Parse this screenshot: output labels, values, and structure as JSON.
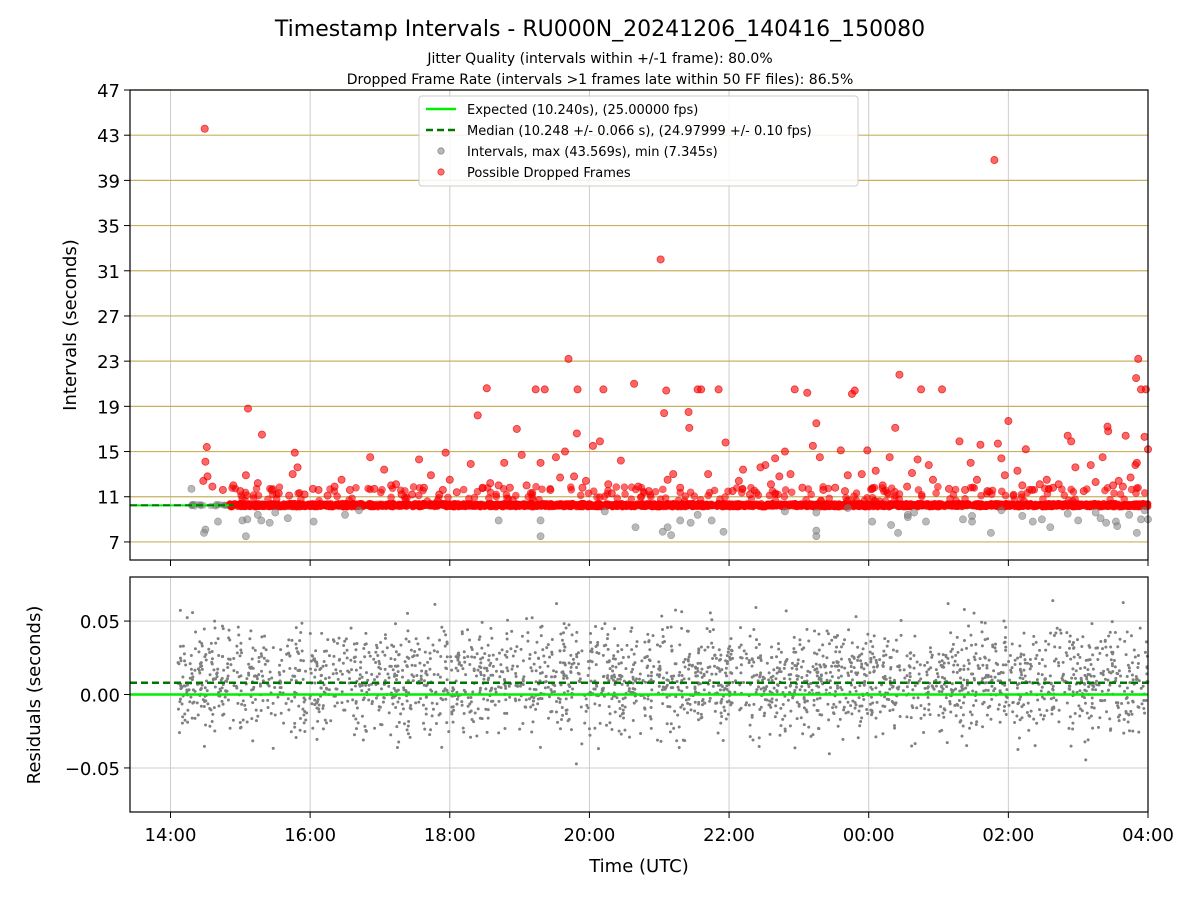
{
  "title": "Timestamp Intervals - RU000N_20241206_140416_150080",
  "subtitle_lines": [
    "Jitter Quality (intervals within +/-1 frame): 80.0%",
    "Dropped Frame Rate (intervals >1 frames late within 50 FF files): 86.5%"
  ],
  "colors": {
    "expected": "#00ee00",
    "median": "#007700",
    "interval": "#808080",
    "dropped": "#ff0000",
    "threshold_line": "#c8b060",
    "grid": "#cccccc"
  },
  "chart_data": [
    {
      "type": "scatter",
      "ylabel": "Intervals (seconds)",
      "x_ticks": [
        "14:00",
        "16:00",
        "18:00",
        "20:00",
        "22:00",
        "00:00",
        "02:00",
        "04:00"
      ],
      "x_tick_hours": [
        14,
        16,
        18,
        20,
        22,
        24,
        26,
        28
      ],
      "xlim_hours": [
        13.42,
        28.0
      ],
      "ylim": [
        5.4,
        47
      ],
      "y_ticks": [
        7,
        11,
        15,
        19,
        23,
        27,
        31,
        35,
        39,
        43,
        47
      ],
      "horizontal_lines": [
        7,
        11,
        15,
        19,
        23,
        27,
        31,
        35,
        39,
        43,
        47
      ],
      "grid": true,
      "legend_position": "top-center",
      "legend": [
        {
          "label": "Expected (10.240s), (25.00000 fps)",
          "style": "solid-line",
          "color": "#00ee00"
        },
        {
          "label": "Median (10.248 +/- 0.066 s), (24.97999 +/- 0.10 fps)",
          "style": "dashed-line",
          "color": "#007700"
        },
        {
          "label": "Intervals, max (43.569s), min (7.345s)",
          "style": "marker",
          "color": "#808080"
        },
        {
          "label": "Possible Dropped Frames",
          "style": "marker",
          "color": "#ff0000"
        }
      ],
      "expected_interval": 10.24,
      "median_interval": 10.248,
      "max_interval": 43.569,
      "min_interval": 7.345,
      "series": [
        {
          "name": "Possible Dropped Frames",
          "points": [
            [
              14.49,
              43.57
            ],
            [
              14.52,
              15.4
            ],
            [
              14.5,
              14.1
            ],
            [
              14.47,
              12.4
            ],
            [
              14.53,
              12.8
            ],
            [
              14.6,
              11.9
            ],
            [
              14.75,
              11.6
            ],
            [
              14.9,
              12.0
            ],
            [
              15.11,
              18.8
            ],
            [
              15.08,
              12.9
            ],
            [
              15.0,
              11.5
            ],
            [
              15.31,
              16.5
            ],
            [
              15.25,
              12.2
            ],
            [
              15.45,
              11.6
            ],
            [
              15.55,
              11.3
            ],
            [
              15.7,
              11.1
            ],
            [
              15.78,
              14.9
            ],
            [
              15.75,
              13.0
            ],
            [
              15.82,
              13.6
            ],
            [
              15.92,
              11.2
            ],
            [
              16.04,
              11.7
            ],
            [
              16.12,
              11.6
            ],
            [
              16.25,
              11.1
            ],
            [
              16.35,
              11.9
            ],
            [
              16.45,
              12.5
            ],
            [
              16.57,
              11.6
            ],
            [
              16.86,
              14.5
            ],
            [
              16.92,
              11.7
            ],
            [
              17.06,
              13.4
            ],
            [
              17.16,
              12.0
            ],
            [
              17.23,
              12.1
            ],
            [
              17.31,
              11.2
            ],
            [
              17.46,
              11.2
            ],
            [
              17.56,
              14.3
            ],
            [
              17.63,
              11.8
            ],
            [
              17.73,
              12.9
            ],
            [
              17.85,
              11.2
            ],
            [
              17.9,
              11.6
            ],
            [
              17.94,
              14.9
            ],
            [
              18.0,
              12.5
            ],
            [
              18.1,
              11.4
            ],
            [
              18.3,
              13.9
            ],
            [
              18.4,
              18.2
            ],
            [
              18.53,
              20.6
            ],
            [
              18.47,
              11.8
            ],
            [
              18.58,
              12.2
            ],
            [
              18.7,
              12.0
            ],
            [
              18.78,
              14.0
            ],
            [
              18.86,
              11.8
            ],
            [
              18.96,
              17.0
            ],
            [
              19.03,
              14.7
            ],
            [
              19.1,
              12.0
            ],
            [
              19.23,
              20.5
            ],
            [
              19.3,
              14.0
            ],
            [
              19.36,
              20.5
            ],
            [
              19.44,
              11.6
            ],
            [
              19.52,
              14.5
            ],
            [
              19.58,
              12.7
            ],
            [
              19.65,
              15.0
            ],
            [
              19.7,
              23.2
            ],
            [
              19.78,
              12.8
            ],
            [
              19.82,
              16.6
            ],
            [
              19.83,
              20.5
            ],
            [
              19.9,
              11.8
            ],
            [
              19.95,
              12.4
            ],
            [
              20.05,
              15.5
            ],
            [
              20.15,
              15.9
            ],
            [
              20.2,
              20.5
            ],
            [
              20.27,
              12.1
            ],
            [
              20.32,
              11.3
            ],
            [
              20.45,
              14.2
            ],
            [
              20.64,
              21.0
            ],
            [
              20.7,
              11.9
            ],
            [
              20.85,
              11.5
            ],
            [
              21.02,
              32.0
            ],
            [
              21.1,
              20.4
            ],
            [
              21.07,
              18.4
            ],
            [
              21.12,
              12.5
            ],
            [
              21.2,
              13.0
            ],
            [
              21.3,
              11.8
            ],
            [
              21.42,
              18.5
            ],
            [
              21.43,
              17.1
            ],
            [
              21.55,
              20.5
            ],
            [
              21.6,
              20.5
            ],
            [
              21.7,
              13.0
            ],
            [
              21.85,
              20.5
            ],
            [
              21.95,
              15.8
            ],
            [
              22.05,
              11.5
            ],
            [
              22.14,
              12.4
            ],
            [
              22.2,
              13.4
            ],
            [
              22.3,
              11.2
            ],
            [
              22.45,
              13.6
            ],
            [
              22.52,
              13.8
            ],
            [
              22.6,
              12.1
            ],
            [
              22.66,
              14.4
            ],
            [
              22.72,
              12.8
            ],
            [
              22.8,
              15.0
            ],
            [
              22.88,
              13.0
            ],
            [
              22.94,
              20.5
            ],
            [
              23.05,
              11.8
            ],
            [
              23.12,
              20.2
            ],
            [
              23.2,
              15.5
            ],
            [
              23.25,
              17.5
            ],
            [
              23.3,
              14.5
            ],
            [
              23.35,
              11.6
            ],
            [
              23.52,
              11.8
            ],
            [
              23.6,
              15.1
            ],
            [
              23.66,
              11.5
            ],
            [
              23.7,
              12.9
            ],
            [
              23.76,
              20.1
            ],
            [
              23.8,
              20.4
            ],
            [
              23.9,
              13.0
            ],
            [
              23.98,
              15.1
            ],
            [
              24.05,
              11.7
            ],
            [
              24.1,
              13.3
            ],
            [
              24.2,
              12.0
            ],
            [
              24.3,
              14.5
            ],
            [
              24.38,
              17.1
            ],
            [
              24.44,
              21.8
            ],
            [
              24.55,
              11.9
            ],
            [
              24.62,
              13.1
            ],
            [
              24.7,
              14.3
            ],
            [
              24.75,
              20.5
            ],
            [
              24.86,
              13.8
            ],
            [
              24.92,
              12.5
            ],
            [
              25.05,
              20.5
            ],
            [
              25.15,
              11.7
            ],
            [
              25.3,
              15.9
            ],
            [
              25.38,
              11.6
            ],
            [
              25.46,
              14.0
            ],
            [
              25.55,
              12.5
            ],
            [
              25.6,
              15.6
            ],
            [
              25.7,
              11.5
            ],
            [
              25.8,
              40.8
            ],
            [
              25.85,
              15.7
            ],
            [
              25.9,
              14.4
            ],
            [
              25.95,
              12.9
            ],
            [
              26.0,
              17.7
            ],
            [
              26.13,
              13.3
            ],
            [
              26.2,
              12.0
            ],
            [
              26.25,
              15.2
            ],
            [
              26.34,
              11.6
            ],
            [
              26.45,
              12.1
            ],
            [
              26.55,
              12.5
            ],
            [
              26.64,
              11.8
            ],
            [
              26.72,
              12.1
            ],
            [
              26.85,
              16.4
            ],
            [
              26.9,
              15.9
            ],
            [
              26.96,
              13.6
            ],
            [
              27.08,
              11.5
            ],
            [
              27.18,
              13.8
            ],
            [
              27.25,
              12.3
            ],
            [
              27.35,
              14.5
            ],
            [
              27.43,
              16.8
            ],
            [
              27.42,
              17.2
            ],
            [
              27.5,
              12.0
            ],
            [
              27.58,
              12.4
            ],
            [
              27.68,
              16.4
            ],
            [
              27.82,
              13.8
            ],
            [
              27.84,
              14.0
            ],
            [
              27.83,
              21.5
            ],
            [
              27.86,
              23.2
            ],
            [
              27.9,
              20.5
            ],
            [
              27.97,
              20.5
            ],
            [
              27.95,
              16.3
            ],
            [
              28.0,
              15.2
            ],
            [
              27.75,
              12.7
            ],
            [
              27.64,
              11.9
            ]
          ]
        },
        {
          "name": "Intervals",
          "points": [
            [
              14.3,
              11.7
            ],
            [
              14.5,
              8.1
            ],
            [
              14.48,
              7.8
            ],
            [
              14.68,
              8.8
            ],
            [
              15.03,
              8.9
            ],
            [
              15.08,
              7.5
            ],
            [
              15.1,
              9.0
            ],
            [
              15.25,
              9.4
            ],
            [
              15.3,
              8.9
            ],
            [
              15.42,
              8.7
            ],
            [
              15.5,
              9.6
            ],
            [
              15.68,
              9.1
            ],
            [
              16.05,
              8.8
            ],
            [
              16.5,
              9.4
            ],
            [
              16.7,
              9.8
            ],
            [
              18.7,
              8.9
            ],
            [
              19.3,
              8.9
            ],
            [
              19.3,
              7.5
            ],
            [
              20.22,
              9.7
            ],
            [
              20.66,
              8.3
            ],
            [
              21.05,
              7.9
            ],
            [
              21.12,
              8.3
            ],
            [
              21.17,
              7.6
            ],
            [
              21.3,
              8.9
            ],
            [
              21.45,
              8.7
            ],
            [
              21.55,
              9.4
            ],
            [
              21.75,
              8.9
            ],
            [
              21.92,
              7.9
            ],
            [
              22.8,
              9.7
            ],
            [
              23.25,
              8.0
            ],
            [
              23.25,
              7.5
            ],
            [
              23.25,
              9.6
            ],
            [
              23.7,
              10.0
            ],
            [
              24.05,
              8.8
            ],
            [
              24.32,
              8.5
            ],
            [
              24.42,
              7.8
            ],
            [
              24.56,
              9.2
            ],
            [
              24.56,
              9.4
            ],
            [
              24.65,
              9.6
            ],
            [
              24.82,
              8.8
            ],
            [
              25.35,
              9.0
            ],
            [
              25.48,
              9.3
            ],
            [
              25.48,
              8.8
            ],
            [
              25.75,
              7.8
            ],
            [
              25.9,
              9.8
            ],
            [
              26.2,
              9.3
            ],
            [
              26.35,
              8.8
            ],
            [
              26.48,
              9.0
            ],
            [
              26.6,
              8.3
            ],
            [
              26.85,
              9.5
            ],
            [
              27.0,
              8.9
            ],
            [
              27.25,
              9.6
            ],
            [
              27.32,
              9.1
            ],
            [
              27.4,
              8.7
            ],
            [
              27.54,
              8.8
            ],
            [
              27.56,
              8.4
            ],
            [
              27.73,
              9.4
            ],
            [
              27.84,
              7.8
            ],
            [
              27.9,
              9.0
            ],
            [
              27.95,
              9.8
            ],
            [
              28.0,
              9.0
            ]
          ]
        }
      ]
    },
    {
      "type": "scatter",
      "xlabel": "Time (UTC)",
      "ylabel": "Residuals (seconds)",
      "x_ticks": [
        "14:00",
        "16:00",
        "18:00",
        "20:00",
        "22:00",
        "00:00",
        "02:00",
        "04:00"
      ],
      "x_tick_hours": [
        14,
        16,
        18,
        20,
        22,
        24,
        26,
        28
      ],
      "xlim_hours": [
        13.42,
        28.0
      ],
      "ylim": [
        -0.08,
        0.08
      ],
      "y_ticks": [
        "−0.05",
        "0.00",
        "0.05"
      ],
      "y_tick_values": [
        -0.05,
        0.0,
        0.05
      ],
      "grid": true,
      "expected_residual": 0.0,
      "median_residual": 0.008,
      "series": [
        {
          "name": "Residuals",
          "color": "#808080",
          "distribution": {
            "x_range_hours": [
              14.1,
              28.0
            ],
            "center": 0.01,
            "spread": 0.02,
            "count": 2600
          }
        }
      ]
    }
  ]
}
